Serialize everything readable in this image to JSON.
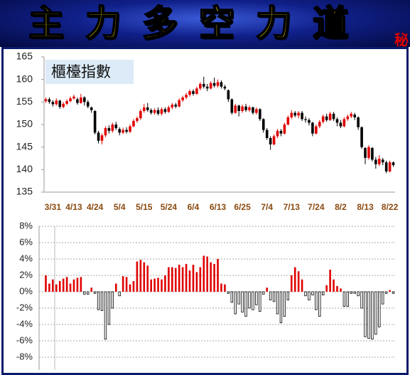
{
  "header": {
    "title": "主力多空力道",
    "badge": "秘"
  },
  "chart_data": [
    {
      "type": "candlestick",
      "series_name": "櫃檯指數",
      "categories": [
        null,
        null,
        "3/31",
        null,
        null,
        null,
        null,
        null,
        "4/13",
        null,
        null,
        null,
        null,
        null,
        "4/24",
        null,
        null,
        null,
        null,
        null,
        null,
        "5/4",
        null,
        null,
        null,
        null,
        null,
        null,
        "5/15",
        null,
        null,
        null,
        null,
        null,
        null,
        "5/24",
        null,
        null,
        null,
        null,
        null,
        null,
        "6/4",
        null,
        null,
        null,
        null,
        null,
        null,
        "6/13",
        null,
        null,
        null,
        null,
        null,
        null,
        "6/25",
        null,
        null,
        null,
        null,
        null,
        null,
        "7/4",
        null,
        null,
        null,
        null,
        null,
        null,
        "7/13",
        null,
        null,
        null,
        null,
        null,
        null,
        "7/24",
        null,
        null,
        null,
        null,
        null,
        null,
        "8/2",
        null,
        null,
        null,
        null,
        null,
        null,
        "8/13",
        null,
        null,
        null,
        null,
        null,
        null,
        "8/22",
        null
      ],
      "open": [
        155.2,
        155.6,
        155.0,
        154.5,
        155.3,
        153.9,
        154.6,
        155.2,
        155.8,
        155.6,
        154.8,
        156.0,
        155.0,
        153.8,
        153.0,
        148.2,
        146.4,
        147.6,
        149.2,
        148.6,
        150.0,
        149.0,
        148.2,
        148.8,
        148.4,
        149.6,
        150.8,
        151.4,
        153.0,
        153.8,
        153.2,
        152.6,
        153.2,
        152.4,
        153.4,
        152.8,
        153.8,
        154.4,
        154.0,
        155.4,
        156.0,
        156.6,
        157.4,
        156.8,
        158.0,
        159.0,
        158.4,
        158.0,
        159.2,
        158.6,
        159.4,
        158.4,
        157.6,
        155.6,
        152.6,
        154.2,
        153.0,
        154.0,
        153.2,
        153.8,
        152.6,
        153.4,
        151.2,
        148.8,
        147.0,
        145.6,
        147.4,
        148.6,
        148.0,
        150.0,
        151.6,
        152.6,
        152.0,
        152.6,
        151.2,
        151.0,
        150.4,
        148.0,
        149.6,
        150.6,
        151.8,
        151.0,
        152.4,
        151.2,
        150.4,
        149.6,
        151.2,
        151.8,
        152.2,
        151.6,
        149.4,
        144.8,
        142.6,
        144.8,
        142.2,
        141.2,
        142.2,
        141.6,
        139.6,
        141.6
      ],
      "close": [
        155.6,
        155.0,
        154.5,
        155.3,
        153.9,
        154.6,
        155.2,
        155.8,
        156.2,
        154.8,
        156.0,
        155.0,
        154.0,
        153.2,
        148.2,
        146.4,
        147.6,
        149.2,
        148.6,
        150.0,
        149.2,
        148.2,
        148.8,
        148.4,
        149.6,
        150.8,
        151.4,
        153.0,
        153.8,
        153.2,
        152.6,
        153.2,
        152.4,
        153.4,
        152.8,
        153.8,
        154.4,
        154.0,
        155.4,
        156.0,
        156.6,
        157.4,
        156.8,
        158.0,
        159.0,
        158.4,
        158.0,
        159.2,
        158.6,
        159.4,
        158.4,
        158.0,
        155.6,
        152.6,
        154.2,
        153.0,
        154.0,
        153.2,
        153.8,
        152.6,
        153.4,
        151.2,
        148.8,
        147.0,
        145.6,
        147.4,
        148.6,
        148.0,
        150.0,
        151.6,
        152.6,
        152.0,
        152.6,
        151.2,
        151.0,
        150.4,
        148.0,
        149.6,
        150.6,
        151.8,
        151.0,
        152.4,
        151.2,
        150.4,
        149.6,
        151.2,
        151.8,
        152.4,
        151.6,
        149.4,
        145.0,
        142.6,
        145.0,
        142.2,
        141.2,
        142.4,
        141.6,
        139.6,
        141.6,
        141.0
      ],
      "high": [
        156.0,
        156.0,
        155.4,
        155.8,
        155.5,
        155.0,
        155.6,
        156.2,
        156.6,
        156.0,
        156.8,
        156.3,
        155.4,
        154.0,
        153.2,
        148.6,
        148.0,
        149.6,
        149.8,
        150.4,
        150.6,
        149.4,
        149.3,
        149.4,
        150.0,
        151.2,
        151.8,
        153.4,
        154.6,
        154.8,
        153.6,
        153.6,
        153.8,
        153.8,
        153.8,
        154.2,
        154.8,
        154.8,
        155.8,
        156.4,
        157.0,
        157.8,
        157.8,
        158.4,
        159.4,
        160.6,
        159.0,
        159.6,
        160.4,
        160.0,
        159.8,
        158.8,
        157.8,
        155.8,
        154.6,
        154.4,
        154.4,
        154.6,
        154.2,
        154.0,
        153.8,
        153.6,
        151.4,
        149.2,
        147.4,
        147.8,
        149.0,
        149.0,
        150.4,
        152.0,
        153.2,
        153.0,
        153.0,
        153.0,
        151.8,
        151.4,
        150.6,
        150.0,
        151.0,
        152.2,
        152.4,
        152.8,
        152.8,
        151.6,
        151.0,
        151.6,
        152.2,
        152.8,
        152.6,
        151.8,
        149.6,
        145.0,
        145.4,
        145.0,
        142.8,
        143.2,
        142.6,
        142.0,
        142.0,
        141.8
      ],
      "low": [
        154.8,
        154.6,
        154.0,
        154.2,
        153.5,
        153.6,
        154.3,
        154.9,
        155.5,
        154.4,
        154.6,
        154.2,
        153.6,
        152.6,
        147.8,
        145.8,
        145.6,
        147.2,
        148.0,
        148.2,
        148.8,
        147.6,
        147.9,
        148.0,
        148.1,
        149.4,
        150.4,
        151.0,
        152.6,
        152.8,
        152.2,
        152.2,
        152.0,
        152.0,
        152.4,
        152.6,
        153.4,
        153.6,
        153.8,
        155.0,
        155.6,
        156.2,
        156.4,
        156.6,
        157.6,
        158.0,
        157.4,
        157.8,
        158.2,
        158.2,
        158.0,
        157.6,
        155.0,
        152.2,
        152.4,
        151.8,
        152.6,
        152.8,
        152.8,
        152.2,
        152.2,
        150.8,
        148.2,
        146.6,
        144.4,
        145.4,
        147.0,
        147.4,
        147.8,
        149.8,
        151.2,
        151.6,
        151.4,
        150.8,
        150.4,
        149.8,
        147.4,
        147.8,
        149.2,
        150.2,
        150.6,
        150.8,
        150.8,
        149.6,
        149.2,
        149.4,
        150.8,
        151.4,
        151.0,
        148.8,
        144.6,
        141.2,
        142.2,
        141.8,
        140.2,
        140.8,
        141.0,
        139.2,
        139.4,
        140.6
      ],
      "up_color": "#e00000",
      "down_color": "#000000",
      "ylim": [
        135,
        165
      ],
      "yticks": [
        135,
        140,
        145,
        150,
        155,
        160,
        165
      ]
    },
    {
      "type": "bar",
      "values": [
        2.0,
        1.0,
        1.5,
        0.9,
        1.3,
        1.6,
        1.8,
        1.0,
        1.5,
        1.7,
        1.8,
        -0.3,
        -0.3,
        0.5,
        -0.2,
        -2.2,
        -2.3,
        -5.8,
        -4.0,
        -2.0,
        1.0,
        -0.5,
        1.9,
        1.8,
        0.9,
        1.3,
        3.7,
        3.9,
        3.6,
        3.2,
        1.5,
        1.6,
        1.7,
        1.5,
        2.0,
        3.0,
        3.0,
        2.9,
        3.3,
        3.0,
        3.4,
        2.6,
        3.3,
        2.4,
        3.0,
        4.4,
        4.3,
        3.6,
        3.4,
        4.0,
        1.0,
        0.9,
        -0.2,
        -1.3,
        -2.7,
        -1.5,
        -2.5,
        -3.0,
        -2.0,
        -2.2,
        -1.6,
        -2.4,
        -0.3,
        0.5,
        -1.0,
        -1.2,
        -2.7,
        -3.8,
        -3.0,
        -1.0,
        2.0,
        3.0,
        2.5,
        1.5,
        -0.5,
        -1.0,
        -0.4,
        -2.2,
        -3.0,
        -0.4,
        0.8,
        2.7,
        1.5,
        0.7,
        0.4,
        -1.8,
        -1.8,
        -0.2,
        -0.2,
        -0.5,
        -2.0,
        -5.5,
        -5.7,
        -5.8,
        -5.2,
        -4.3,
        -1.5,
        -0.2,
        0.2,
        -0.2
      ],
      "positive_color": "#e00000",
      "negative_color": "#ffffff",
      "ylim": [
        -8,
        8
      ],
      "yticks": [
        {
          "value": -8,
          "label": "-8%"
        },
        {
          "value": -6,
          "label": "-6%"
        },
        {
          "value": -4,
          "label": "-4%"
        },
        {
          "value": -2,
          "label": "-2%"
        },
        {
          "value": 0,
          "label": "0%"
        },
        {
          "value": 2,
          "label": "2%"
        },
        {
          "value": 4,
          "label": "4%"
        },
        {
          "value": 6,
          "label": "6%"
        },
        {
          "value": 8,
          "label": "8%"
        }
      ],
      "grid": true
    }
  ]
}
